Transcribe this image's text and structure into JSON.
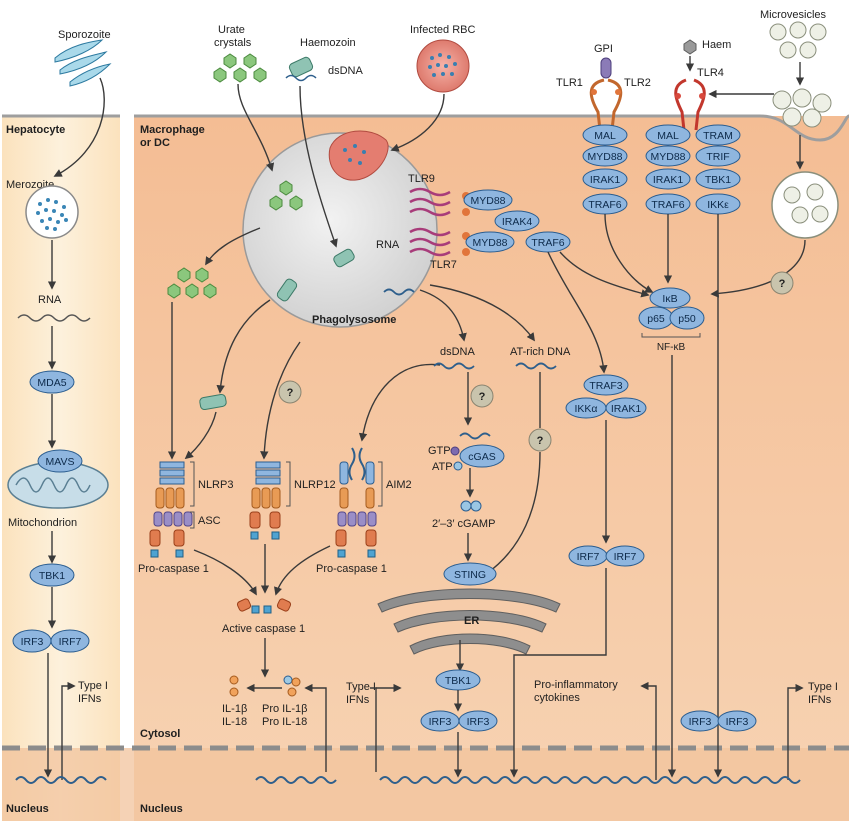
{
  "panels": {
    "hepatocyte": "Hepatocyte",
    "macrophage": "Macrophage",
    "macrophage_line2": "or DC",
    "cytosol": "Cytosol",
    "nucleus_left": "Nucleus",
    "nucleus_right": "Nucleus"
  },
  "hep": {
    "sporozoite": "Sporozoite",
    "merozoite": "Merozoite",
    "rna": "RNA",
    "mda5": "MDA5",
    "mavs": "MAVS",
    "mitochondrion": "Mitochondrion",
    "tbk1": "TBK1",
    "irf3": "IRF3",
    "irf7": "IRF7",
    "type1": "Type I",
    "ifns": "IFNs"
  },
  "top": {
    "urate": "Urate",
    "crystals": "crystals",
    "haemozoin": "Haemozoin",
    "dsdna": "dsDNA",
    "infected_rbc": "Infected RBC",
    "microvesicles": "Microvesicles",
    "gpi": "GPI",
    "haem": "Haem",
    "tlr1": "TLR1",
    "tlr2": "TLR2",
    "tlr4": "TLR4"
  },
  "phago": {
    "label": "Phagolysosome",
    "tlr9": "TLR9",
    "tlr7": "TLR7",
    "rna": "RNA",
    "myd88_a": "MYD88",
    "myd88_b": "MYD88",
    "irak4": "IRAK4",
    "traf6": "TRAF6"
  },
  "tlr_cols": {
    "c1": [
      "MAL",
      "MYD88",
      "IRAK1",
      "TRAF6"
    ],
    "c2": [
      "MAL",
      "MYD88",
      "IRAK1",
      "TRAF6"
    ],
    "c3": [
      "TRAM",
      "TRIF",
      "TBK1",
      "IKKε"
    ]
  },
  "nfkb": {
    "ikb": "IκB",
    "p65": "p65",
    "p50": "p50",
    "label": "NF-κB",
    "question": "?"
  },
  "inflam": {
    "nlrp3": "NLRP3",
    "asc": "ASC",
    "nlrp12": "NLRP12",
    "aim2": "AIM2",
    "procasp_left": "Pro-caspase 1",
    "procasp_right": "Pro-caspase 1",
    "active_casp": "Active caspase 1",
    "il1b": "IL-1β",
    "il18": "IL-18",
    "pro_il1b": "Pro IL-1β",
    "pro_il18": "Pro IL-18",
    "type1": "Type I",
    "ifns": "IFNs",
    "q1": "?"
  },
  "dna": {
    "dsdna": "dsDNA",
    "atrich": "AT-rich DNA",
    "gtp": "GTP",
    "atp": "ATP",
    "cgas": "cGAS",
    "cgamp": "2′–3′ cGAMP",
    "sting": "STING",
    "er": "ER",
    "tbk1": "TBK1",
    "irf3a": "IRF3",
    "irf3b": "IRF3",
    "q2": "?",
    "q3": "?"
  },
  "traf3": {
    "traf3": "TRAF3",
    "ikka": "IKKα",
    "irak1": "IRAK1",
    "irf7a": "IRF7",
    "irf7b": "IRF7"
  },
  "outputs": {
    "proinflam": "Pro-inflammatory",
    "cytokines": "cytokines",
    "irf3a": "IRF3",
    "irf3b": "IRF3",
    "type1": "Type I",
    "ifns": "IFNs"
  },
  "colors": {
    "cytoplasm": "#f6c9a2",
    "protein": "#8fb6df",
    "protein_stroke": "#2b5d8f",
    "hep_bg": "#fbe8c7",
    "nucleus": "#f3c9a3"
  }
}
